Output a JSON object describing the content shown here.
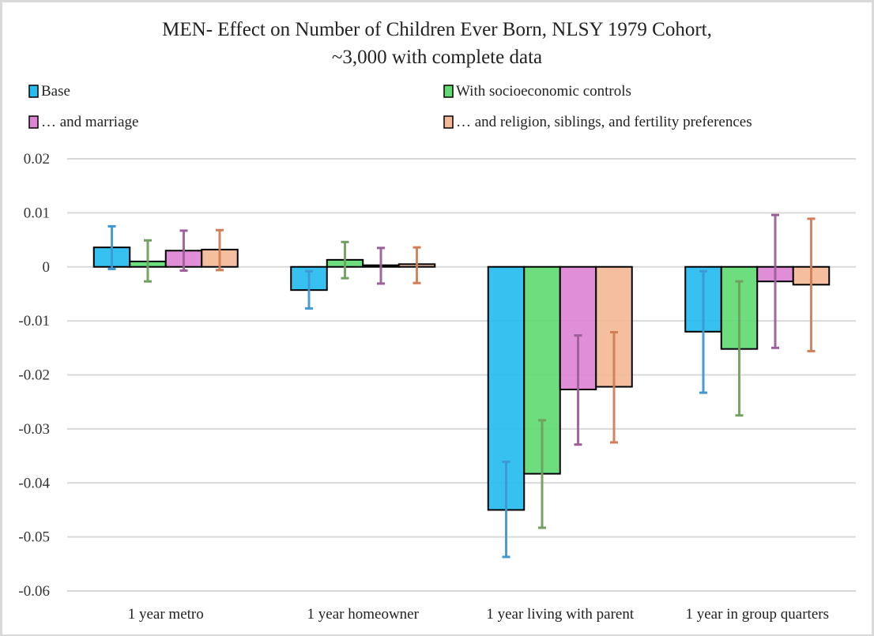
{
  "chart_data": {
    "type": "bar",
    "title": "MEN- Effect on Number of Children Ever Born, NLSY 1979 Cohort,",
    "subtitle": "~3,000 with complete data",
    "xlabel": "",
    "ylabel": "",
    "ylim": [
      -0.06,
      0.02
    ],
    "yticks": [
      0.02,
      0.01,
      0,
      -0.01,
      -0.02,
      -0.03,
      -0.04,
      -0.05,
      -0.06
    ],
    "ytick_labels": [
      "0.02",
      "0.01",
      "0",
      "-0.01",
      "-0.02",
      "-0.03",
      "-0.04",
      "-0.05",
      "-0.06"
    ],
    "grid": true,
    "legend_placement": "top",
    "categories": [
      "1 year metro",
      "1 year homeowner",
      "1 year living with parent",
      "1 year in group quarters"
    ],
    "series": [
      {
        "name": "Base",
        "color": "#25bcf0",
        "error_color": "#3f97d3",
        "values": [
          0.0036,
          -0.0043,
          -0.045,
          -0.012
        ],
        "error_high": [
          0.0075,
          -0.0008,
          -0.0361,
          -0.0008
        ],
        "error_low": [
          -0.0004,
          -0.0077,
          -0.0537,
          -0.0233
        ]
      },
      {
        "name": "With socioeconomic controls",
        "color": "#62da73",
        "error_color": "#6fa05e",
        "values": [
          0.001,
          0.0013,
          -0.0383,
          -0.0152
        ],
        "error_high": [
          0.0049,
          0.0046,
          -0.0284,
          -0.0027
        ],
        "error_low": [
          -0.0027,
          -0.0021,
          -0.0483,
          -0.0275
        ]
      },
      {
        "name": "… and marriage",
        "color": "#dd84d4",
        "error_color": "#9c5f99",
        "values": [
          0.003,
          0.0003,
          -0.0227,
          -0.0027
        ],
        "error_high": [
          0.0067,
          0.0035,
          -0.0127,
          0.0096
        ],
        "error_low": [
          -0.0007,
          -0.0031,
          -0.0329,
          -0.015
        ]
      },
      {
        "name": "… and religion, siblings, and fertility preferences",
        "color": "#f3b997",
        "error_color": "#d27d56",
        "values": [
          0.0032,
          0.0005,
          -0.0222,
          -0.0033
        ],
        "error_high": [
          0.0068,
          0.0036,
          -0.0121,
          0.0089
        ],
        "error_low": [
          -0.0006,
          -0.003,
          -0.0325,
          -0.0156
        ]
      }
    ]
  }
}
